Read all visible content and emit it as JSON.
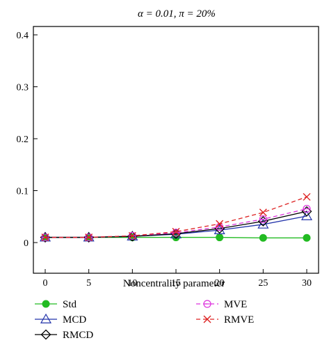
{
  "chart_data": {
    "type": "line",
    "title": "α = 0.01, π = 20%",
    "xlabel": "Noncentrality parameter",
    "ylabel": "",
    "x": [
      0,
      5,
      10,
      15,
      20,
      25,
      30
    ],
    "xlim": [
      0,
      30
    ],
    "ylim": [
      0,
      0.42
    ],
    "x_ticks": [
      0,
      5,
      10,
      15,
      20,
      25,
      30
    ],
    "y_ticks": [
      0,
      0.1,
      0.2,
      0.3,
      0.4
    ],
    "y_tick_labels": [
      "0",
      "0.1",
      "0.2",
      "0.3",
      "0.4"
    ],
    "grid": false,
    "legend_position": "bottom",
    "series": [
      {
        "name": "Std",
        "color": "#22bb22",
        "marker": "filled-circle",
        "dash": "solid",
        "values": [
          0.01,
          0.01,
          0.01,
          0.01,
          0.01,
          0.009,
          0.009
        ]
      },
      {
        "name": "MCD",
        "color": "#2233aa",
        "marker": "triangle",
        "dash": "solid",
        "values": [
          0.01,
          0.01,
          0.012,
          0.016,
          0.024,
          0.035,
          0.051
        ]
      },
      {
        "name": "RMCD",
        "color": "#000000",
        "marker": "diamond",
        "dash": "solid",
        "values": [
          0.01,
          0.01,
          0.012,
          0.017,
          0.027,
          0.041,
          0.06
        ]
      },
      {
        "name": "MVE",
        "color": "#dd33dd",
        "marker": "circle-line",
        "dash": "dashed",
        "values": [
          0.01,
          0.01,
          0.013,
          0.019,
          0.03,
          0.045,
          0.065
        ]
      },
      {
        "name": "RMVE",
        "color": "#dd2222",
        "marker": "x",
        "dash": "dashed",
        "values": [
          0.01,
          0.01,
          0.013,
          0.021,
          0.036,
          0.058,
          0.088
        ]
      }
    ]
  }
}
